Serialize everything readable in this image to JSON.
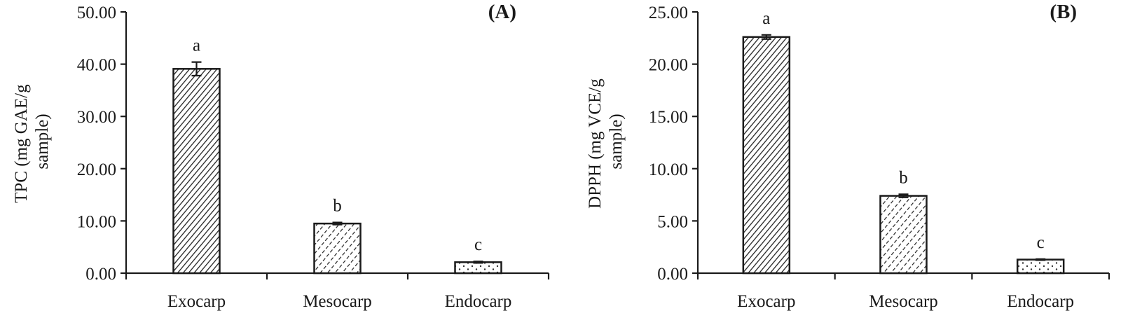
{
  "chart_data": [
    {
      "type": "bar",
      "panel_label": "(A)",
      "ylabel_lines": [
        "TPC (mg GAE/g",
        "sample)"
      ],
      "categories": [
        "Exocarp",
        "Mesocarp",
        "Endocarp"
      ],
      "values": [
        39.1,
        9.5,
        2.1
      ],
      "errors": [
        1.3,
        0.2,
        0.15
      ],
      "significance": [
        "a",
        "b",
        "c"
      ],
      "patterns": [
        "dense-diagonal",
        "dashed-diagonal",
        "dotted"
      ],
      "ylim": [
        0,
        50
      ],
      "yticks": [
        0,
        10,
        20,
        30,
        40,
        50
      ],
      "ytick_labels": [
        "0.00",
        "10.00",
        "20.00",
        "30.00",
        "40.00",
        "50.00"
      ],
      "grid": false
    },
    {
      "type": "bar",
      "panel_label": "(B)",
      "ylabel_lines": [
        "DPPH (mg VCE/g",
        "sample)"
      ],
      "categories": [
        "Exocarp",
        "Mesocarp",
        "Endocarp"
      ],
      "values": [
        22.6,
        7.4,
        1.3
      ],
      "errors": [
        0.2,
        0.15,
        0.05
      ],
      "significance": [
        "a",
        "b",
        "c"
      ],
      "patterns": [
        "dense-diagonal",
        "dashed-diagonal",
        "dotted"
      ],
      "ylim": [
        0,
        25
      ],
      "yticks": [
        0,
        5,
        10,
        15,
        20,
        25
      ],
      "ytick_labels": [
        "0.00",
        "5.00",
        "10.00",
        "15.00",
        "20.00",
        "25.00"
      ],
      "grid": false
    }
  ]
}
